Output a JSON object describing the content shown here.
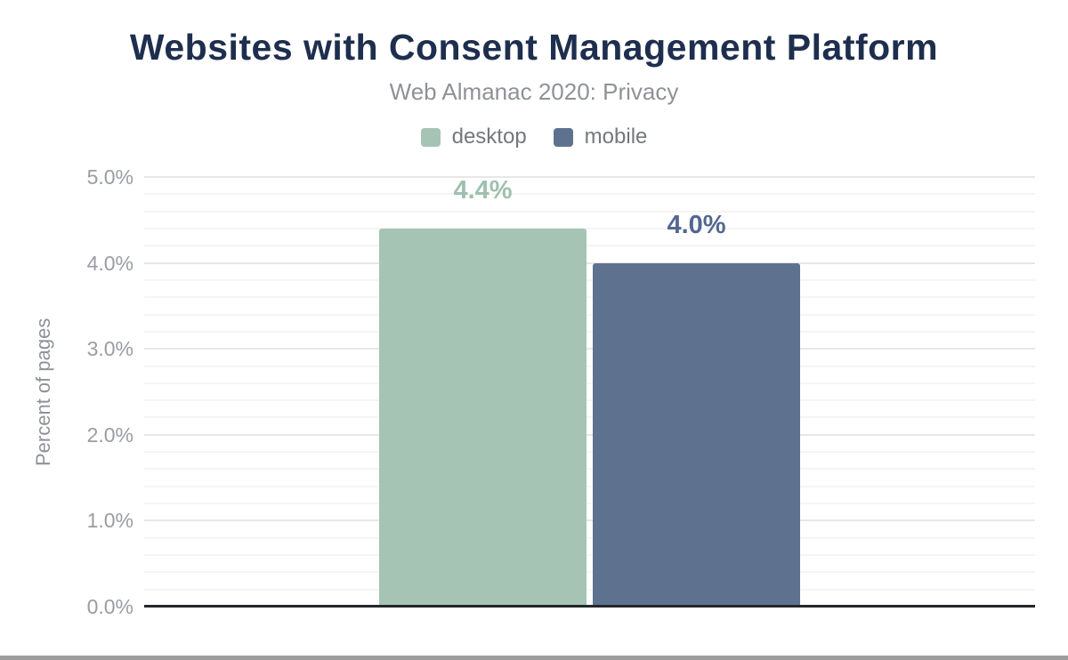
{
  "header": {
    "title": "Websites with Consent Management Platform",
    "subtitle": "Web Almanac 2020: Privacy"
  },
  "chart_data": {
    "type": "bar",
    "title": "Websites with Consent Management Platform",
    "subtitle": "Web Almanac 2020: Privacy",
    "categories": [
      "desktop",
      "mobile"
    ],
    "values": [
      4.4,
      4.0
    ],
    "data_labels": [
      "4.4%",
      "4.0%"
    ],
    "series_colors": [
      "#a6c4b4",
      "#5e7290"
    ],
    "data_label_colors": [
      "#9fc0ae",
      "#53688f"
    ],
    "xlabel": "",
    "ylabel": "Percent of pages",
    "ylim": [
      0,
      5
    ],
    "yticks": [
      {
        "value": 0,
        "label": "0.0%"
      },
      {
        "value": 1,
        "label": "1.0%"
      },
      {
        "value": 2,
        "label": "2.0%"
      },
      {
        "value": 3,
        "label": "3.0%"
      },
      {
        "value": 4,
        "label": "4.0%"
      },
      {
        "value": 5,
        "label": "5.0%"
      }
    ],
    "grid": true,
    "grid_minor_step": 0.2,
    "grid_major_step": 1.0,
    "legend_position": "top"
  },
  "colors": {
    "title_text": "#1e2e4e",
    "subtitle_text": "#8e9297",
    "legend_text": "#74787d",
    "tick_text": "#999da3",
    "axis_line": "#23262a",
    "grid_minor": "#f5f5f5",
    "grid_major": "#e7e7e7",
    "bottom_rule": "#9d9d9d"
  }
}
